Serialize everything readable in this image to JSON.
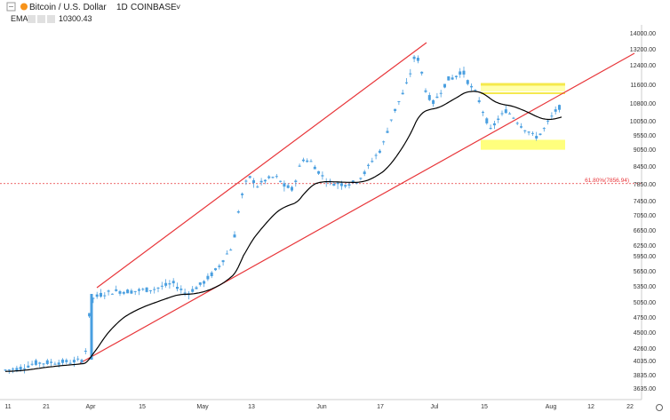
{
  "header": {
    "title": "Bitcoin / U.S. Dollar",
    "interval": "1D",
    "exchange": "COINBASE",
    "indicator_label": "EMA",
    "indicator_value": "10300.43"
  },
  "colors": {
    "candle_up": "#4a9fe0",
    "ema": "#000000",
    "trendline": "#e8363a",
    "fib_line": "#e8363a",
    "zone_fill": "#ffff66",
    "zone_line": "#f5e94c",
    "axis_text": "#333333",
    "fib_text": "#e8363a"
  },
  "chart_data": {
    "type": "candlestick",
    "title": "Bitcoin / U.S. Dollar",
    "y_ticks": [
      "14000.00",
      "13200.00",
      "12400.00",
      "11600.00",
      "10800.00",
      "10050.00",
      "9550.00",
      "9050.00",
      "8450.00",
      "7850.00",
      "7450.00",
      "7050.00",
      "6650.00",
      "6250.00",
      "5950.00",
      "5650.00",
      "5350.00",
      "5050.00",
      "4750.00",
      "4500.00",
      "4260.00",
      "4035.00",
      "3835.00",
      "3635.00"
    ],
    "x_ticks": [
      "11",
      "21",
      "Apr",
      "15",
      "May",
      "13",
      "Jun",
      "17",
      "Jul",
      "15",
      "Aug",
      "12",
      "22"
    ],
    "fib_label": "61.80%(7856.94)",
    "fib_value": 7856.94,
    "zones": [
      {
        "from": 11300,
        "to": 11600
      },
      {
        "from": 9030,
        "to": 9380
      }
    ],
    "ema_last": 10300.43
  }
}
